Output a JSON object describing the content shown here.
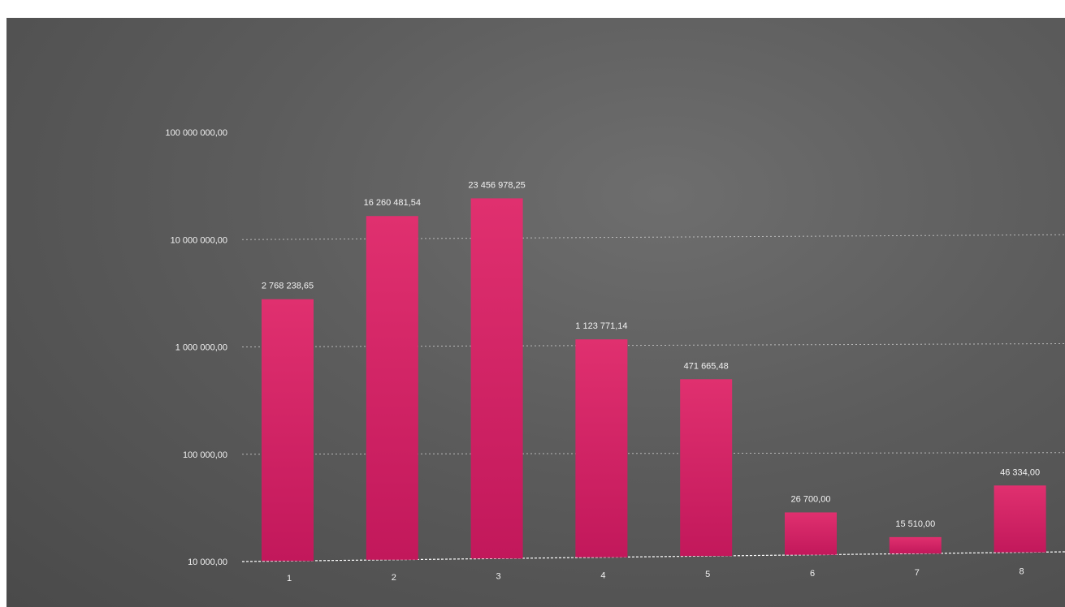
{
  "chart_data": {
    "type": "bar",
    "title": "",
    "xlabel": "",
    "ylabel": "",
    "y_scale": "log",
    "ylim": [
      10000,
      100000000
    ],
    "y_ticks": [
      10000,
      100000,
      1000000,
      10000000,
      100000000
    ],
    "y_tick_labels": [
      "10 000,00",
      "100 000,00",
      "1 000 000,00",
      "10 000 000,00",
      "100 000 000,00"
    ],
    "grid": true,
    "legend": "none",
    "categories": [
      "1",
      "2",
      "3",
      "4",
      "5",
      "6",
      "7",
      "8"
    ],
    "values": [
      2768238.65,
      16260481.54,
      23456978.25,
      1123771.14,
      471665.48,
      26700.0,
      15510.0,
      46334.0
    ],
    "data_labels": [
      "2 768 238,65",
      "16 260 481,54",
      "23 456 978,25",
      "1 123 771,14",
      "471 665,48",
      "26 700,00",
      "15 510,00",
      "46 334,00"
    ],
    "bar_color": "#d11f66",
    "background_color": "#5a5a5a"
  }
}
